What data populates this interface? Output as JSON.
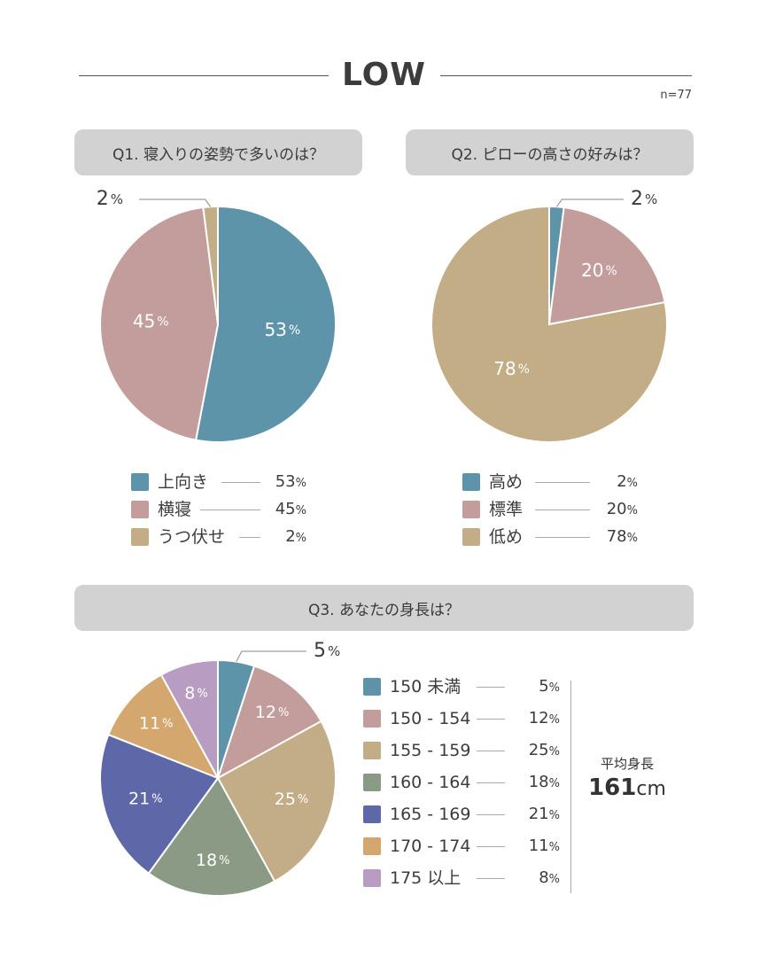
{
  "header": {
    "title": "LOW",
    "sample": "n=77"
  },
  "avg": {
    "label": "平均身長",
    "value": "161",
    "unit": "cm"
  },
  "colors": {
    "blue": "#5e94aa",
    "pink": "#c39c9c",
    "tan": "#c2ad86",
    "green": "#8b9a84",
    "indigo": "#5e67a8",
    "orange": "#d3a76d",
    "lavender": "#b99cc2"
  },
  "chart_data": [
    {
      "type": "pie",
      "title": "Q1. 寝入りの姿勢で多いのは？",
      "series": [
        {
          "name": "上向き",
          "value": 53,
          "color": "#5e94aa"
        },
        {
          "name": "横寝",
          "value": 45,
          "color": "#c39c9c"
        },
        {
          "name": "うつ伏せ",
          "value": 2,
          "color": "#c2ad86"
        }
      ]
    },
    {
      "type": "pie",
      "title": "Q2. ピローの高さの好みは？",
      "series": [
        {
          "name": "高め",
          "value": 2,
          "color": "#5e94aa"
        },
        {
          "name": "標準",
          "value": 20,
          "color": "#c39c9c"
        },
        {
          "name": "低め",
          "value": 78,
          "color": "#c2ad86"
        }
      ]
    },
    {
      "type": "pie",
      "title": "Q3. あなたの身長は？",
      "series": [
        {
          "name": "150 未満",
          "value": 5,
          "color": "#5e94aa"
        },
        {
          "name": "150 - 154",
          "value": 12,
          "color": "#c39c9c"
        },
        {
          "name": "155 - 159",
          "value": 25,
          "color": "#c2ad86"
        },
        {
          "name": "160 - 164",
          "value": 18,
          "color": "#8b9a84"
        },
        {
          "name": "165 - 169",
          "value": 21,
          "color": "#5e67a8"
        },
        {
          "name": "170 - 174",
          "value": 11,
          "color": "#d3a76d"
        },
        {
          "name": "175 以上",
          "value": 8,
          "color": "#b99cc2"
        }
      ]
    }
  ]
}
